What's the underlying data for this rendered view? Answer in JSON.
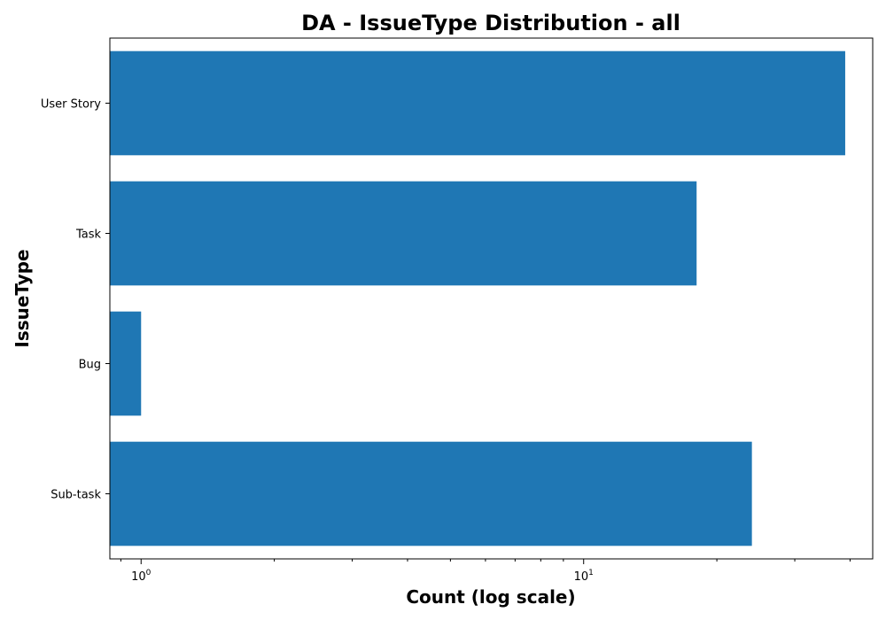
{
  "chart_data": {
    "type": "bar",
    "orientation": "horizontal",
    "title": "DA - IssueType Distribution - all",
    "xlabel": "Count (log scale)",
    "ylabel": "IssueType",
    "x_scale": "log",
    "xlim": [
      0.85,
      45
    ],
    "grid": false,
    "categories": [
      "User Story",
      "Task",
      "Bug",
      "Sub-task"
    ],
    "values": [
      39,
      18,
      1,
      24
    ],
    "bar_color": "#1f77b4",
    "x_ticks": [
      {
        "base": "10",
        "exponent": "0",
        "value": 1
      },
      {
        "base": "10",
        "exponent": "1",
        "value": 10
      }
    ]
  }
}
